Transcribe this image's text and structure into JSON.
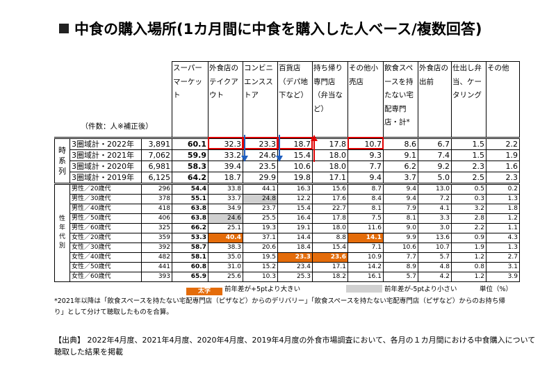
{
  "title": "中食の購入場所(1カ月間に中食を購入した人ベース/複数回答)",
  "header": {
    "note": "（件数：人※補正後）",
    "columns": [
      "スーパーマーケット",
      "外食店のテイクアウト",
      "コンビニエンスストア",
      "百貨店（デパ地下など）",
      "持ち帰り専門店（弁当など）",
      "その他小売店",
      "飲食スペースを持たない宅配専門店・計*",
      "外食店の出前",
      "仕出し弁当、ケータリング",
      "その他"
    ]
  },
  "time_series": {
    "group_label": "時系列",
    "rows": [
      {
        "label": "3圏域計・2022年",
        "n": "3,891",
        "values": [
          "60.1",
          "32.3",
          "23.3",
          "18.7",
          "17.8",
          "10.7",
          "8.6",
          "6.7",
          "1.5",
          "2.2"
        ]
      },
      {
        "label": "3圏域計・2021年",
        "n": "7,062",
        "values": [
          "59.9",
          "33.2",
          "24.6",
          "15.4",
          "18.0",
          "9.3",
          "9.1",
          "7.4",
          "1.5",
          "1.9"
        ]
      },
      {
        "label": "3圏域計・2020年",
        "n": "6,981",
        "values": [
          "58.3",
          "39.4",
          "23.5",
          "10.6",
          "18.0",
          "7.7",
          "6.2",
          "9.2",
          "2.3",
          "1.6"
        ]
      },
      {
        "label": "3圏域計・2019年",
        "n": "6,125",
        "values": [
          "64.2",
          "18.7",
          "29.9",
          "19.8",
          "17.1",
          "9.4",
          "3.7",
          "5.0",
          "2.5",
          "2.3"
        ]
      }
    ]
  },
  "gender_age": {
    "group_label": "性年代別",
    "rows": [
      {
        "label": "男性／20歳代",
        "n": "296",
        "values": [
          "54.4",
          "33.8",
          "44.1",
          "16.3",
          "15.6",
          "8.7",
          "9.4",
          "13.0",
          "0.5",
          "0.2"
        ]
      },
      {
        "label": "男性／30歳代",
        "n": "378",
        "values": [
          "55.1",
          "33.7",
          "24.8",
          "12.2",
          "17.6",
          "8.4",
          "9.4",
          "7.2",
          "0.3",
          "1.3"
        ]
      },
      {
        "label": "男性／40歳代",
        "n": "418",
        "values": [
          "63.8",
          "34.9",
          "23.7",
          "15.4",
          "22.7",
          "8.1",
          "7.9",
          "4.1",
          "3.2",
          "1.8"
        ]
      },
      {
        "label": "男性／50歳代",
        "n": "406",
        "values": [
          "63.8",
          "24.6",
          "25.5",
          "16.4",
          "17.8",
          "7.5",
          "8.1",
          "3.3",
          "2.8",
          "1.2"
        ]
      },
      {
        "label": "男性／60歳代",
        "n": "325",
        "values": [
          "66.2",
          "25.1",
          "19.3",
          "19.1",
          "18.0",
          "11.6",
          "9.0",
          "3.0",
          "2.2",
          "1.1"
        ]
      },
      {
        "label": "女性／20歳代",
        "n": "359",
        "values": [
          "53.3",
          "40.4",
          "37.1",
          "14.4",
          "8.8",
          "14.1",
          "9.9",
          "13.6",
          "0.9",
          "4.3"
        ]
      },
      {
        "label": "女性／30歳代",
        "n": "392",
        "values": [
          "58.7",
          "38.3",
          "20.6",
          "18.4",
          "15.4",
          "7.1",
          "10.6",
          "10.7",
          "1.9",
          "1.3"
        ]
      },
      {
        "label": "女性／40歳代",
        "n": "482",
        "values": [
          "58.1",
          "35.0",
          "19.5",
          "23.3",
          "23.6",
          "10.9",
          "7.7",
          "5.7",
          "1.2",
          "2.7"
        ]
      },
      {
        "label": "女性／50歳代",
        "n": "441",
        "values": [
          "60.8",
          "31.0",
          "15.2",
          "23.4",
          "17.1",
          "14.2",
          "8.9",
          "4.8",
          "0.8",
          "3.1"
        ]
      },
      {
        "label": "女性／60歳代",
        "n": "393",
        "values": [
          "65.9",
          "25.6",
          "10.3",
          "25.3",
          "18.2",
          "16.1",
          "5.7",
          "4.2",
          "1.2",
          "3.9"
        ]
      }
    ],
    "highlight_up": [
      [
        5,
        1
      ],
      [
        5,
        5
      ],
      [
        7,
        3
      ],
      [
        7,
        4
      ]
    ],
    "highlight_down": [
      [
        1,
        2
      ],
      [
        3,
        1
      ]
    ]
  },
  "annotation_colors": {
    "box": "#e00000",
    "up_arrow": "#e00000",
    "down_arrow": "#1f5fbf",
    "up_fill": "#e46c0a",
    "down_fill": "#d0d0d0"
  },
  "legend": {
    "up_swatch": "太字",
    "up_text": "前年差が+5ptより大きい",
    "down_text": "前年差が-5ptより小さい",
    "unit": "単位（%）"
  },
  "footnote": "*2021年以降は「飲食スペースを持たない宅配専門店（ピザなど）からのデリバリー」「飲食スペースを持たない宅配専門店（ピザなど）からのお持ち帰り」として分けて聴取したものを合算。",
  "source": "【出典】 2022年4月度、2021年4月度、2020年4月度、2019年4月度の外食市場調査において、各月の１カ月間における中食購入について聴取した結果を掲載"
}
